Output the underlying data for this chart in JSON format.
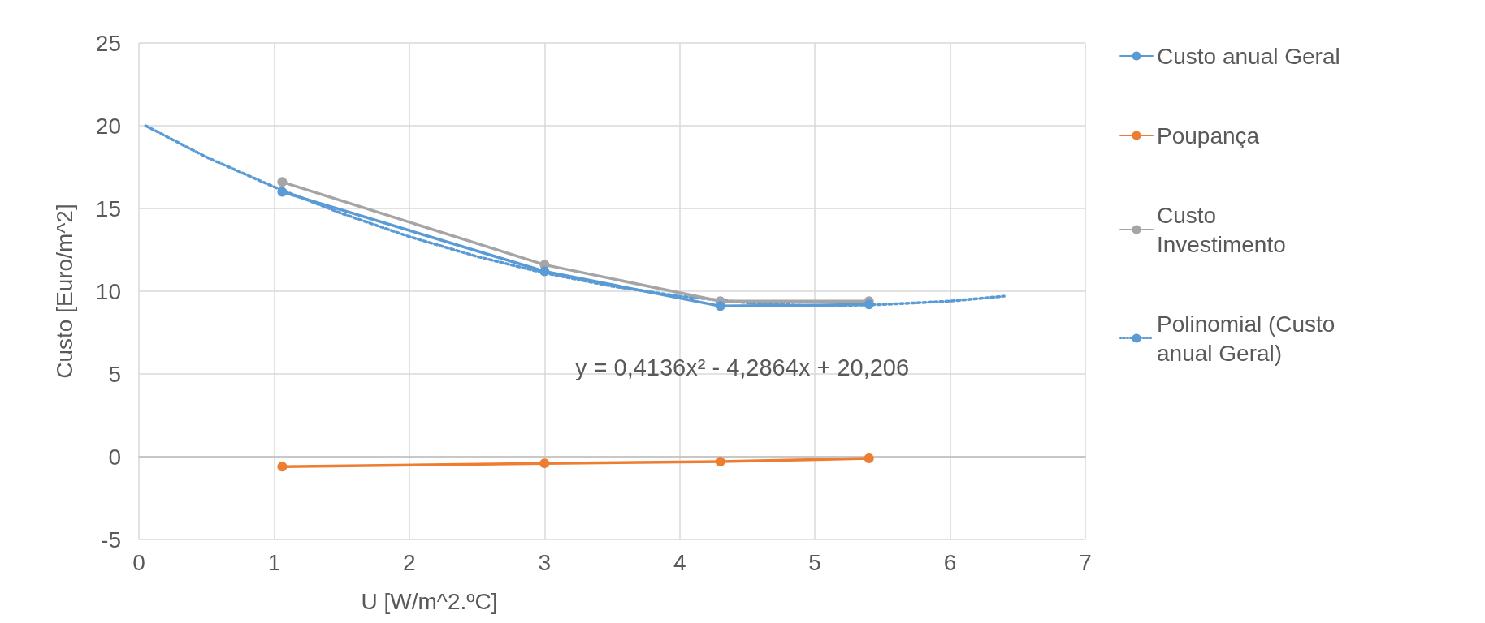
{
  "chart_data": {
    "type": "line",
    "xlabel": "U [W/m^2.ºC]",
    "ylabel": "Custo [Euro/m^2]",
    "xlim": [
      0,
      7
    ],
    "xticks": [
      0,
      1,
      2,
      3,
      4,
      5,
      6,
      7
    ],
    "ylim": [
      -5,
      25
    ],
    "yticks": [
      -5,
      0,
      5,
      10,
      15,
      20,
      25
    ],
    "grid": true,
    "legend": "right",
    "marker": "circle",
    "series": [
      {
        "name": "Custo anual Geral",
        "color": "#5b9bd5",
        "x": [
          1.06,
          3,
          4.3,
          5.4
        ],
        "values": [
          16.0,
          11.2,
          9.1,
          9.2
        ]
      },
      {
        "name": "Poupança",
        "color": "#ed7d31",
        "x": [
          1.06,
          3,
          4.3,
          5.4
        ],
        "values": [
          -0.6,
          -0.4,
          -0.3,
          -0.1
        ]
      },
      {
        "name": "Custo Investimento",
        "color": "#a5a5a5",
        "x": [
          1.06,
          3,
          4.3,
          5.4
        ],
        "values": [
          16.6,
          11.6,
          9.4,
          9.4
        ]
      },
      {
        "name": "Polinomial (Custo anual Geral)",
        "color": "#5b9bd5",
        "marker": "none",
        "line_style": "dotted",
        "x": [
          0.05,
          0.5,
          1,
          1.5,
          2,
          2.5,
          3,
          3.5,
          4,
          4.5,
          5,
          5.5,
          6,
          6.4
        ],
        "values": [
          20.0,
          18.1,
          16.3,
          14.7,
          13.3,
          12.1,
          11.1,
          10.3,
          9.7,
          9.3,
          9.1,
          9.2,
          9.4,
          9.7
        ]
      }
    ],
    "annotations": [
      "y = 0,4136x² - 4,2864x + 20,206"
    ]
  }
}
